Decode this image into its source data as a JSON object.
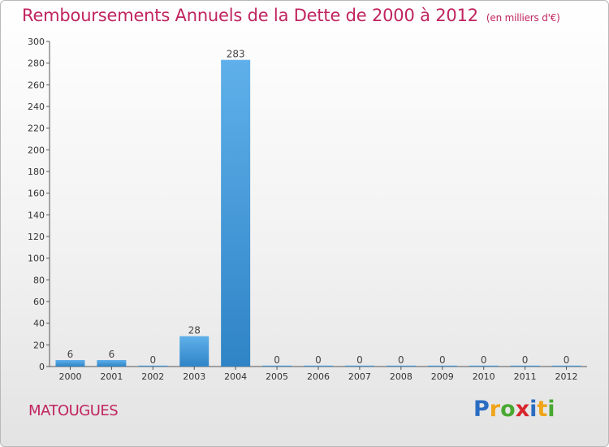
{
  "chart_data": {
    "type": "bar",
    "title": "Remboursements Annuels de la Dette de 2000 à 2012",
    "subtitle": "(en milliers d'€)",
    "categories": [
      "2000",
      "2001",
      "2002",
      "2003",
      "2004",
      "2005",
      "2006",
      "2007",
      "2008",
      "2009",
      "2010",
      "2011",
      "2012"
    ],
    "values": [
      6,
      6,
      0,
      28,
      283,
      0,
      0,
      0,
      0,
      0,
      0,
      0,
      0
    ],
    "ylim": [
      0,
      300
    ],
    "yticks": [
      0,
      20,
      40,
      60,
      80,
      100,
      120,
      140,
      160,
      180,
      200,
      220,
      240,
      260,
      280,
      300
    ],
    "grid": false,
    "bar_color": "#2f84c6"
  },
  "commune": "MATOUGUES",
  "logo": {
    "letters": [
      "P",
      "r",
      "o",
      "x",
      "i",
      "t",
      "i"
    ],
    "colors": [
      "#2a6cc2",
      "#f0a418",
      "#4aa832",
      "#d8262e",
      "#2a6cc2",
      "#f0a418",
      "#4aa832"
    ]
  }
}
